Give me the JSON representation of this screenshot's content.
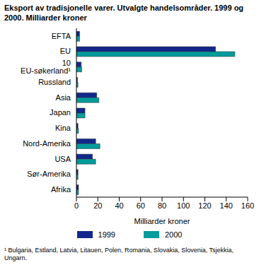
{
  "chart_data": {
    "type": "bar",
    "orientation": "horizontal",
    "title": "Eksport av tradisjonelle varer. Utvalgte handelsområder. 1999 og 2000. Milliarder kroner",
    "x_label": "Milliarder kroner",
    "categories": [
      "EFTA",
      "EU",
      "10 EU-søkerland¹",
      "Russland",
      "Asia",
      "Japan",
      "Kina",
      "Nord-Amerika",
      "USA",
      "Sør-Amerika",
      "Afrika"
    ],
    "series": [
      {
        "name": "1999",
        "color": "#12288c",
        "values": [
          3,
          130,
          4.5,
          1,
          19,
          8,
          1.5,
          18,
          15,
          1.5,
          2
        ]
      },
      {
        "name": "2000",
        "color": "#009b9b",
        "values": [
          3,
          148,
          5,
          1.5,
          21,
          8,
          2,
          22,
          18,
          1.5,
          2
        ]
      }
    ],
    "xlim": [
      0,
      160
    ],
    "xticks": [
      0,
      20,
      40,
      60,
      80,
      100,
      120,
      140,
      160
    ],
    "grid": false,
    "legend": "bottom",
    "annotations": [
      "¹ Bulgaria, Estland, Latvia, Litauen, Polen, Romania, Slovakia, Slovenia, Tsjekkia, Ungarn."
    ]
  }
}
